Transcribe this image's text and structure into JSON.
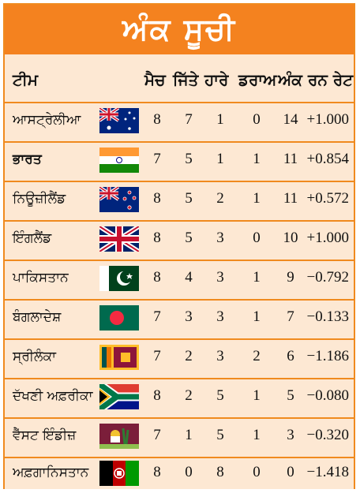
{
  "title": "ਅੰਕ ਸੂਚੀ",
  "columns": [
    "ਟੀਮ",
    "ਮੈਚ",
    "ਜਿੱਤੇ",
    "ਹਾਰੇ",
    "ਡਰਾਅ",
    "ਅੰਕ",
    "ਰਨ ਰੇਟ"
  ],
  "rows": [
    {
      "team": "ਆਸਟ੍ਰੇਲੀਆ",
      "flag": "australia-flag-icon",
      "matches": "8",
      "won": "7",
      "lost": "1",
      "draw": "0",
      "points": "14",
      "nrr": "+1.000"
    },
    {
      "team": "ਭਾਰਤ",
      "flag": "india-flag-icon",
      "matches": "7",
      "won": "5",
      "lost": "1",
      "draw": "1",
      "points": "11",
      "nrr": "+0.854"
    },
    {
      "team": "ਨਿਊਜ਼ੀਲੈਂਡ",
      "flag": "new-zealand-flag-icon",
      "matches": "8",
      "won": "5",
      "lost": "2",
      "draw": "1",
      "points": "11",
      "nrr": "+0.572"
    },
    {
      "team": "ਇੰਗਲੈਂਡ",
      "flag": "england-flag-icon",
      "matches": "8",
      "won": "5",
      "lost": "3",
      "draw": "0",
      "points": "10",
      "nrr": "+1.000"
    },
    {
      "team": "ਪਾਕਿਸਤਾਨ",
      "flag": "pakistan-flag-icon",
      "matches": "8",
      "won": "4",
      "lost": "3",
      "draw": "1",
      "points": "9",
      "nrr": "−0.792"
    },
    {
      "team": "ਬੰਗਲਾਦੇਸ਼",
      "flag": "bangladesh-flag-icon",
      "matches": "7",
      "won": "3",
      "lost": "3",
      "draw": "1",
      "points": "7",
      "nrr": "−0.133"
    },
    {
      "team": "ਸ੍ਰੀਲੰਕਾ",
      "flag": "sri-lanka-flag-icon",
      "matches": "7",
      "won": "2",
      "lost": "3",
      "draw": "2",
      "points": "6",
      "nrr": "−1.186"
    },
    {
      "team": "ਦੱਖਣੀ ਅਫ਼ਰੀਕਾ",
      "flag": "south-africa-flag-icon",
      "matches": "8",
      "won": "2",
      "lost": "5",
      "draw": "1",
      "points": "5",
      "nrr": "−0.080"
    },
    {
      "team": "ਵੈੱਸਟ ਇੰਡੀਜ਼",
      "flag": "west-indies-flag-icon",
      "matches": "7",
      "won": "1",
      "lost": "5",
      "draw": "1",
      "points": "3",
      "nrr": "−0.320"
    },
    {
      "team": "ਅਫ਼ਗਾਨਿਸਤਾਨ",
      "flag": "afghanistan-flag-icon",
      "matches": "8",
      "won": "0",
      "lost": "8",
      "draw": "0",
      "points": "0",
      "nrr": "−1.418"
    }
  ]
}
